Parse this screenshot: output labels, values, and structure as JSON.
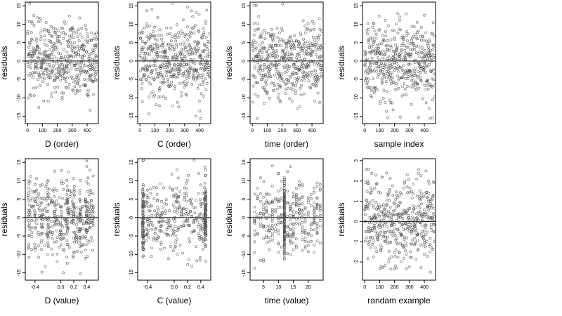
{
  "chart_data": [
    {
      "type": "scatter",
      "xlabel": "D (order)",
      "ylabel": "residuals",
      "x_ticks": [
        0,
        100,
        200,
        300,
        400
      ],
      "y_ticks": [
        -15,
        -10,
        -5,
        0,
        5,
        10,
        15
      ],
      "xlim": [
        -15,
        475
      ],
      "ylim": [
        -17,
        16
      ],
      "hline": 0,
      "x_kind": "index",
      "y_sd": 5.2
    },
    {
      "type": "scatter",
      "xlabel": "C (order)",
      "ylabel": "residuals",
      "x_ticks": [
        0,
        100,
        200,
        300,
        400
      ],
      "y_ticks": [
        -15,
        -10,
        -5,
        0,
        5,
        10,
        15
      ],
      "xlim": [
        -15,
        475
      ],
      "ylim": [
        -17,
        16
      ],
      "hline": 0,
      "x_kind": "index",
      "y_sd": 5.2
    },
    {
      "type": "scatter",
      "xlabel": "time (order)",
      "ylabel": "residuals",
      "x_ticks": [
        0,
        100,
        200,
        300,
        400
      ],
      "y_ticks": [
        -15,
        -10,
        -5,
        0,
        5,
        10,
        15
      ],
      "xlim": [
        -15,
        475
      ],
      "ylim": [
        -17,
        16
      ],
      "hline": 0,
      "x_kind": "index",
      "y_sd": 5.2
    },
    {
      "type": "scatter",
      "xlabel": "sample index",
      "ylabel": "residuals",
      "x_ticks": [
        0,
        100,
        200,
        300,
        400
      ],
      "y_ticks": [
        -15,
        -10,
        -5,
        0,
        5,
        10,
        15
      ],
      "xlim": [
        -15,
        475
      ],
      "ylim": [
        -17,
        16
      ],
      "hline": 0,
      "x_kind": "index",
      "y_sd": 5.2
    },
    {
      "type": "scatter",
      "xlabel": "D (value)",
      "ylabel": "residuals",
      "x_ticks": [
        -0.4,
        0.0,
        0.2,
        0.4
      ],
      "x_tick_labels": [
        "-0.4",
        "0.0",
        "0.2",
        "0.4"
      ],
      "y_ticks": [
        -15,
        -10,
        -5,
        0,
        5,
        10,
        15
      ],
      "xlim": [
        -0.55,
        0.58
      ],
      "ylim": [
        -17,
        16
      ],
      "hline": 0,
      "x_kind": "uniform",
      "x_range": [
        -0.5,
        0.5
      ],
      "y_sd": 5.2
    },
    {
      "type": "scatter",
      "xlabel": "C (value)",
      "ylabel": "residuals",
      "x_ticks": [
        -0.4,
        0.0,
        0.2,
        0.4
      ],
      "x_tick_labels": [
        "-0.4",
        "0.0",
        "0.2",
        "0.4"
      ],
      "y_ticks": [
        -15,
        -10,
        -5,
        0,
        5,
        10,
        15
      ],
      "xlim": [
        -0.55,
        0.55
      ],
      "ylim": [
        -17,
        16
      ],
      "hline": 0,
      "x_kind": "uniform_edges",
      "x_range": [
        -0.48,
        0.48
      ],
      "y_sd": 5.2
    },
    {
      "type": "scatter",
      "xlabel": "time (value)",
      "ylabel": "residuals",
      "x_ticks": [
        5,
        10,
        15,
        20
      ],
      "y_ticks": [
        -15,
        -10,
        -5,
        0,
        5,
        10,
        15
      ],
      "xlim": [
        0.5,
        25
      ],
      "ylim": [
        -17,
        16
      ],
      "hline": 0,
      "x_kind": "discrete",
      "x_range": [
        2,
        24
      ],
      "y_sd": 5.2
    },
    {
      "type": "scatter",
      "xlabel": "randam example",
      "ylabel": "residuals",
      "x_ticks": [
        0,
        100,
        200,
        300,
        400
      ],
      "y_ticks": [
        -2,
        -1,
        0,
        1,
        2,
        3
      ],
      "xlim": [
        -15,
        475
      ],
      "ylim": [
        -2.9,
        3.1
      ],
      "hline": 0,
      "x_kind": "index",
      "y_sd": 1.0
    }
  ]
}
